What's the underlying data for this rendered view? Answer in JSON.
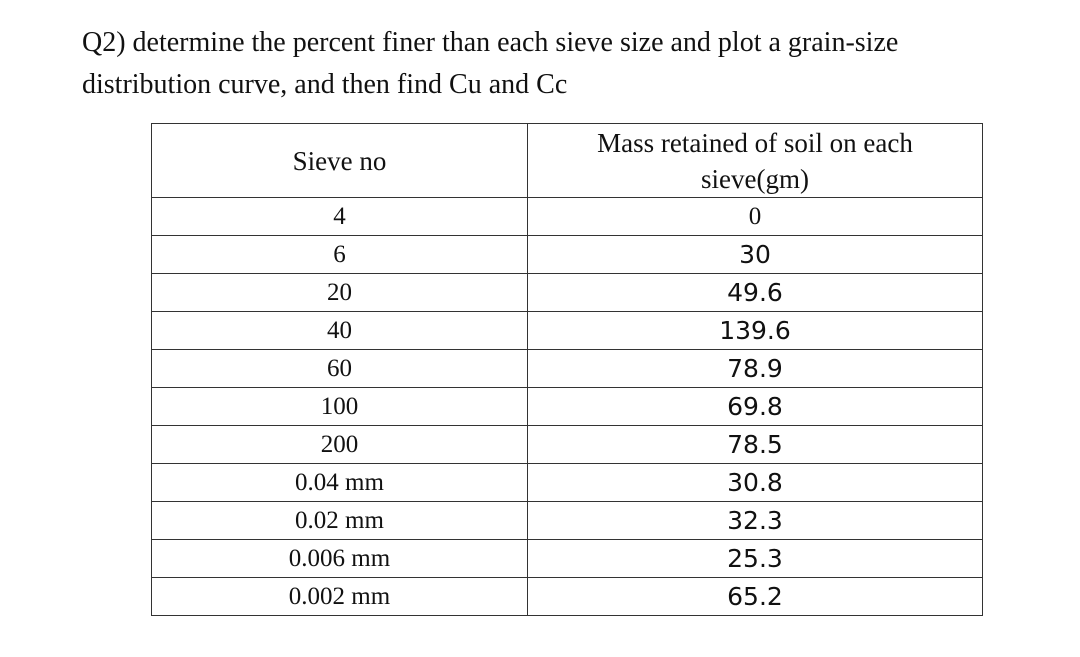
{
  "question": {
    "line1": "Q2) determine the percent finer than each sieve size and plot a grain-size",
    "line2": "distribution curve, and then find Cu and Cc"
  },
  "table": {
    "headers": {
      "sieve_no": "Sieve no",
      "mass_line1": "Mass retained of soil on each",
      "mass_line2": "sieve(gm)"
    },
    "rows": [
      {
        "sieve": "4",
        "mass": "0"
      },
      {
        "sieve": "6",
        "mass": "30"
      },
      {
        "sieve": "20",
        "mass": "49.6"
      },
      {
        "sieve": "40",
        "mass": "139.6"
      },
      {
        "sieve": "60",
        "mass": "78.9"
      },
      {
        "sieve": "100",
        "mass": "69.8"
      },
      {
        "sieve": "200",
        "mass": "78.5"
      },
      {
        "sieve": "0.04 mm",
        "mass": "30.8"
      },
      {
        "sieve": "0.02 mm",
        "mass": "32.3"
      },
      {
        "sieve": "0.006 mm",
        "mass": "25.3"
      },
      {
        "sieve": "0.002 mm",
        "mass": "65.2"
      }
    ]
  }
}
